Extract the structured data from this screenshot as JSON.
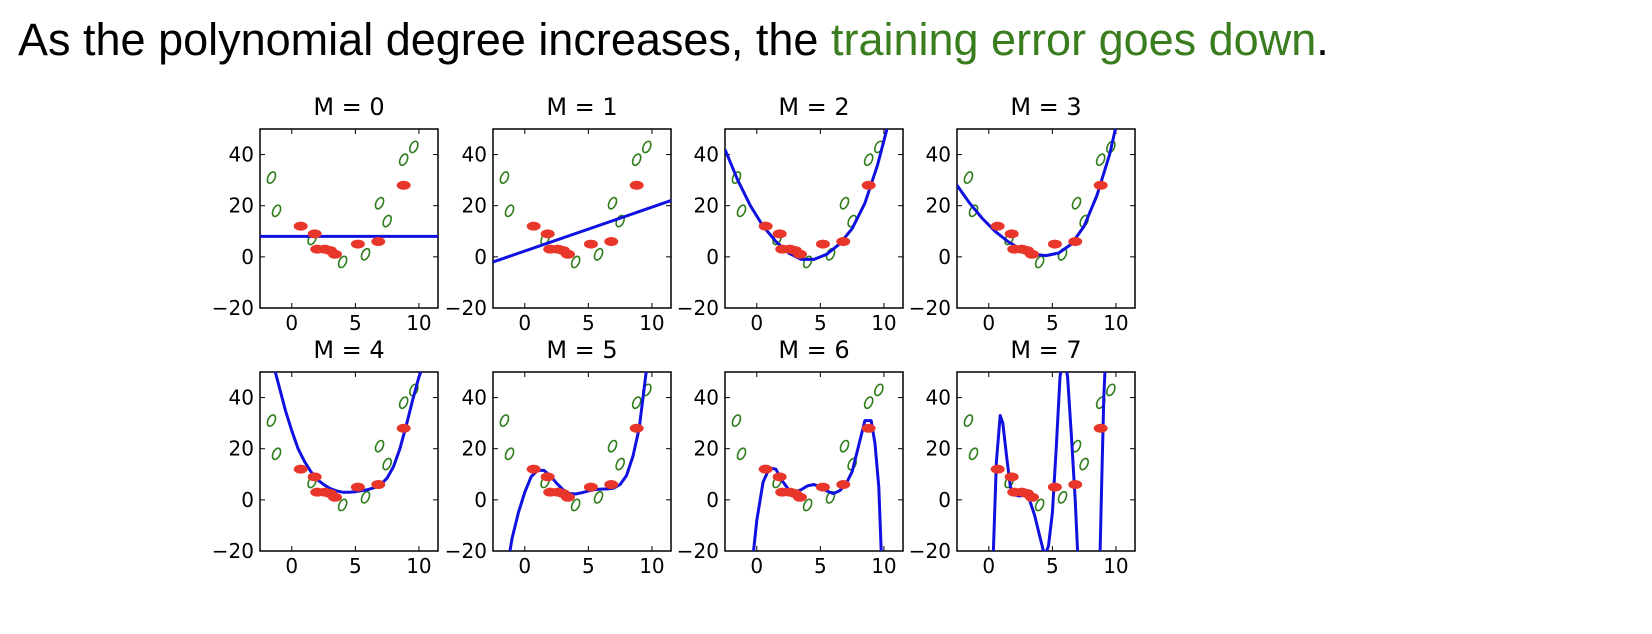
{
  "headline": {
    "prefix": "As the polynomial degree increases, the ",
    "highlight": "training error goes down",
    "suffix": "."
  },
  "colors": {
    "accent": "#3a7d1e",
    "fit_curve": "#1010e0",
    "train_points": "#e8372a",
    "test_points": "#2e7d1a"
  },
  "chart_data": [
    {
      "type": "line",
      "title": "M = 0",
      "degree": 0,
      "xlim": [
        -2.5,
        11.5
      ],
      "ylim": [
        -20,
        50
      ],
      "xticks": [
        0,
        5,
        10
      ],
      "yticks": [
        -20,
        0,
        20,
        40
      ],
      "xtick_labels": [
        "0",
        "5",
        "10"
      ],
      "ytick_labels": [
        "−20",
        "0",
        "20",
        "40"
      ],
      "fit": {
        "x": [
          -2.5,
          11.5
        ],
        "y": [
          8,
          8
        ]
      }
    },
    {
      "type": "line",
      "title": "M = 1",
      "degree": 1,
      "xlim": [
        -2.5,
        11.5
      ],
      "ylim": [
        -20,
        50
      ],
      "xticks": [
        0,
        5,
        10
      ],
      "yticks": [
        -20,
        0,
        20,
        40
      ],
      "xtick_labels": [
        "0",
        "5",
        "10"
      ],
      "ytick_labels": [
        "−20",
        "0",
        "20",
        "40"
      ],
      "fit": {
        "x": [
          -2.5,
          11.5
        ],
        "y": [
          -2,
          22
        ]
      }
    },
    {
      "type": "line",
      "title": "M = 2",
      "degree": 2,
      "xlim": [
        -2.5,
        11.5
      ],
      "ylim": [
        -20,
        50
      ],
      "xticks": [
        0,
        5,
        10
      ],
      "yticks": [
        -20,
        0,
        20,
        40
      ],
      "xtick_labels": [
        "0",
        "5",
        "10"
      ],
      "ytick_labels": [
        "−20",
        "0",
        "20",
        "40"
      ],
      "fit": {
        "x": [
          -2.5,
          -1.5,
          -0.5,
          0.5,
          1.5,
          2.5,
          3.5,
          4.5,
          5.5,
          6.5,
          7.5,
          8.5,
          9.5,
          10.5
        ],
        "y": [
          42,
          30,
          20,
          12,
          6,
          1.5,
          -1,
          -1,
          1,
          5,
          11,
          21,
          36,
          55
        ]
      }
    },
    {
      "type": "line",
      "title": "M = 3",
      "degree": 3,
      "xlim": [
        -2.5,
        11.5
      ],
      "ylim": [
        -20,
        50
      ],
      "xticks": [
        0,
        5,
        10
      ],
      "yticks": [
        -20,
        0,
        20,
        40
      ],
      "xtick_labels": [
        "0",
        "5",
        "10"
      ],
      "ytick_labels": [
        "−20",
        "0",
        "20",
        "40"
      ],
      "fit": {
        "x": [
          -2.5,
          -1.5,
          -0.5,
          0.5,
          1.5,
          2.5,
          3.5,
          4.5,
          5.5,
          6.5,
          7.5,
          8.5,
          9.5,
          10.5
        ],
        "y": [
          28,
          21,
          15,
          10,
          6,
          3,
          1,
          0.5,
          1.5,
          5,
          12,
          24,
          40,
          62
        ]
      }
    },
    {
      "type": "line",
      "title": "M = 4",
      "degree": 4,
      "xlim": [
        -2.5,
        11.5
      ],
      "ylim": [
        -20,
        50
      ],
      "xticks": [
        0,
        5,
        10
      ],
      "yticks": [
        -20,
        0,
        20,
        40
      ],
      "xtick_labels": [
        "0",
        "5",
        "10"
      ],
      "ytick_labels": [
        "−20",
        "0",
        "20",
        "40"
      ],
      "fit": {
        "x": [
          -1.3,
          -0.5,
          0,
          0.5,
          1,
          1.5,
          2,
          2.5,
          3,
          3.5,
          4,
          4.5,
          5,
          5.5,
          6,
          6.5,
          7,
          7.5,
          8,
          8.5,
          9,
          9.5,
          10,
          10.3
        ],
        "y": [
          50,
          35,
          27,
          20,
          15,
          11,
          8,
          6,
          4.5,
          3.5,
          3,
          3,
          3.2,
          3.6,
          4,
          4.8,
          6,
          8.5,
          13,
          20,
          29,
          39,
          48,
          52
        ]
      }
    },
    {
      "type": "line",
      "title": "M = 5",
      "degree": 5,
      "xlim": [
        -2.5,
        11.5
      ],
      "ylim": [
        -20,
        50
      ],
      "xticks": [
        0,
        5,
        10
      ],
      "yticks": [
        -20,
        0,
        20,
        40
      ],
      "xtick_labels": [
        "0",
        "5",
        "10"
      ],
      "ytick_labels": [
        "−20",
        "0",
        "20",
        "40"
      ],
      "fit": {
        "x": [
          -1.2,
          -1,
          -0.5,
          0,
          0.5,
          1,
          1.5,
          2,
          2.5,
          3,
          3.5,
          4,
          4.5,
          5,
          5.5,
          6,
          6.5,
          7,
          7.5,
          8,
          8.5,
          9,
          9.3,
          9.6
        ],
        "y": [
          -21,
          -15,
          -5,
          3,
          9,
          11.5,
          11.5,
          9.5,
          6.5,
          4,
          2.5,
          2.3,
          2.8,
          3.5,
          4,
          4.2,
          4.3,
          4.6,
          6,
          9.5,
          17,
          28,
          40,
          52
        ]
      }
    },
    {
      "type": "line",
      "title": "M = 6",
      "degree": 6,
      "xlim": [
        -2.5,
        11.5
      ],
      "ylim": [
        -20,
        50
      ],
      "xticks": [
        0,
        5,
        10
      ],
      "yticks": [
        -20,
        0,
        20,
        40
      ],
      "xtick_labels": [
        "0",
        "5",
        "10"
      ],
      "ytick_labels": [
        "−20",
        "0",
        "20",
        "40"
      ],
      "fit": {
        "x": [
          -0.3,
          0,
          0.5,
          1,
          1.5,
          2,
          2.5,
          3,
          3.5,
          4,
          4.5,
          5,
          5.5,
          6,
          6.5,
          7,
          7.5,
          8,
          8.5,
          9,
          9.3,
          9.6,
          9.8
        ],
        "y": [
          -22,
          -8,
          7,
          12.5,
          12,
          7.5,
          4,
          3,
          4,
          5.5,
          6,
          5,
          3.5,
          2.5,
          3.5,
          6,
          11,
          21,
          31,
          31,
          22,
          5,
          -22
        ]
      }
    },
    {
      "type": "line",
      "title": "M = 7",
      "degree": 7,
      "xlim": [
        -2.5,
        11.5
      ],
      "ylim": [
        -20,
        50
      ],
      "xticks": [
        0,
        5,
        10
      ],
      "yticks": [
        -20,
        0,
        20,
        40
      ],
      "xtick_labels": [
        "0",
        "5",
        "10"
      ],
      "ytick_labels": [
        "−20",
        "0",
        "20",
        "40"
      ],
      "fit": {
        "x": [
          0.35,
          0.6,
          0.9,
          1.1,
          1.4,
          1.7,
          2,
          2.4,
          2.8,
          3.2,
          3.6,
          4,
          4.4,
          4.7,
          5,
          5.3,
          5.6,
          5.9,
          6.2,
          6.5,
          6.8,
          7.0,
          7.2
        ],
        "y": [
          -22,
          15,
          33,
          30,
          17,
          5,
          2,
          1.5,
          1.8,
          0,
          -6,
          -14,
          -22,
          -18,
          -5,
          20,
          48,
          58,
          48,
          25,
          0,
          -22,
          -22
        ]
      },
      "fit_extra": {
        "x": [
          8.75,
          8.9,
          9.05,
          9.2
        ],
        "y": [
          -22,
          10,
          40,
          58
        ]
      }
    }
  ],
  "train_points": {
    "x": [
      0.7,
      1.8,
      2.0,
      2.6,
      3.0,
      3.4,
      5.2,
      6.8,
      8.8
    ],
    "y": [
      12,
      9,
      3,
      3,
      2.5,
      1,
      5,
      6,
      28
    ]
  },
  "test_points": {
    "x": [
      -1.6,
      -1.2,
      1.6,
      4.0,
      5.8,
      6.9,
      7.5,
      8.8,
      9.6
    ],
    "y": [
      31,
      18,
      7,
      -2,
      1,
      21,
      14,
      38,
      43
    ]
  }
}
